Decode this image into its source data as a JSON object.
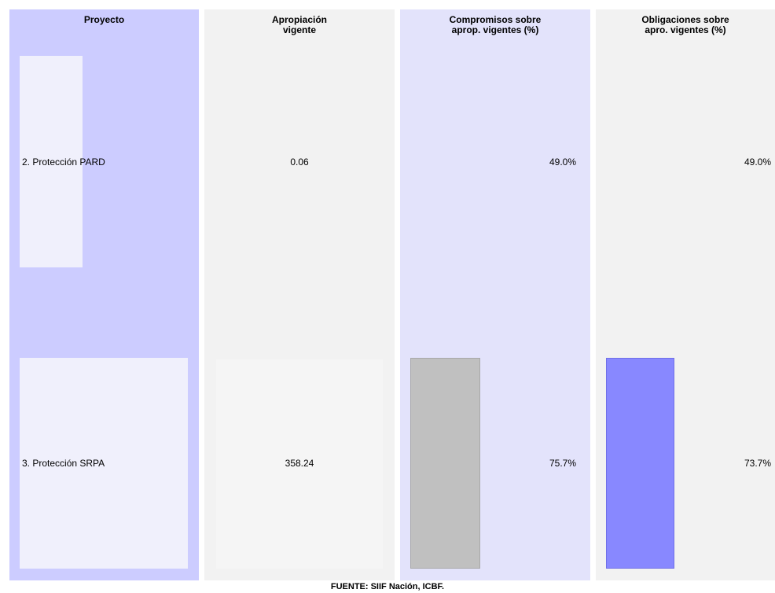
{
  "chart_data": {
    "type": "table",
    "columns": [
      {
        "header": "Proyecto"
      },
      {
        "header": "Apropiación\nvigente"
      },
      {
        "header": "Compromisos sobre\naprop. vigentes (%)"
      },
      {
        "header": "Obligaciones sobre\napro. vigentes (%)"
      }
    ],
    "rows": [
      {
        "proyecto": "2. Protección PARD",
        "apropiacion": 0.06,
        "apropiacion_label": "0.06",
        "compromisos_pct": 49.0,
        "compromisos_label": "49.0%",
        "obligaciones_pct": 49.0,
        "obligaciones_label": "49.0%"
      },
      {
        "proyecto": "3. Protección SRPA",
        "apropiacion": 358.24,
        "apropiacion_label": "358.24",
        "compromisos_pct": 75.7,
        "compromisos_label": "75.7%",
        "obligaciones_pct": 73.7,
        "obligaciones_label": "73.7%"
      }
    ],
    "colors": {
      "col_proyecto_bg": "#ccccff",
      "col_apropiacion_bg": "#f2f2f2",
      "col_compromisos_bg": "#e3e3fb",
      "col_obligaciones_bg": "#f2f2f2",
      "proyecto_bar": "#f0f0fc",
      "apropiacion_bar": "#f5f5f5",
      "compromisos_bar": "#c0c0c0",
      "obligaciones_bar": "#8888ff"
    }
  },
  "footer": "FUENTE: SIIF Nación, ICBF."
}
